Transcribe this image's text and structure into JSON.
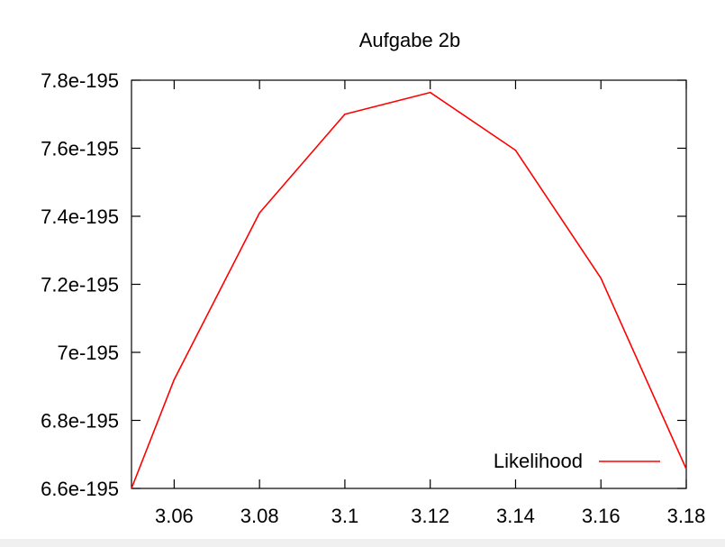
{
  "chart_data": {
    "type": "line",
    "title": "Aufgabe 2b",
    "xlabel": "",
    "ylabel": "",
    "xlim": [
      3.05,
      3.18
    ],
    "ylim": [
      6.6e-195,
      7.8e-195
    ],
    "x_ticks": [
      3.06,
      3.08,
      3.1,
      3.12,
      3.14,
      3.16,
      3.18
    ],
    "x_tick_labels": [
      "3.06",
      "3.08",
      "3.1",
      "3.12",
      "3.14",
      "3.16",
      "3.18"
    ],
    "y_ticks": [
      6.6e-195,
      6.8e-195,
      7e-195,
      7.2e-195,
      7.4e-195,
      7.6e-195,
      7.8e-195
    ],
    "y_tick_labels": [
      "6.6e-195",
      "6.8e-195",
      "7e-195",
      "7.2e-195",
      "7.4e-195",
      "7.6e-195",
      "7.8e-195"
    ],
    "grid": false,
    "legend_position": "bottom-right",
    "series": [
      {
        "name": "Likelihood",
        "color": "#ff0000",
        "x": [
          3.05,
          3.06,
          3.08,
          3.1,
          3.12,
          3.14,
          3.16,
          3.18
        ],
        "y": [
          6.6e-195,
          6.92e-195,
          7.41e-195,
          7.7e-195,
          7.764e-195,
          7.594e-195,
          7.218e-195,
          6.657e-195
        ]
      }
    ]
  }
}
